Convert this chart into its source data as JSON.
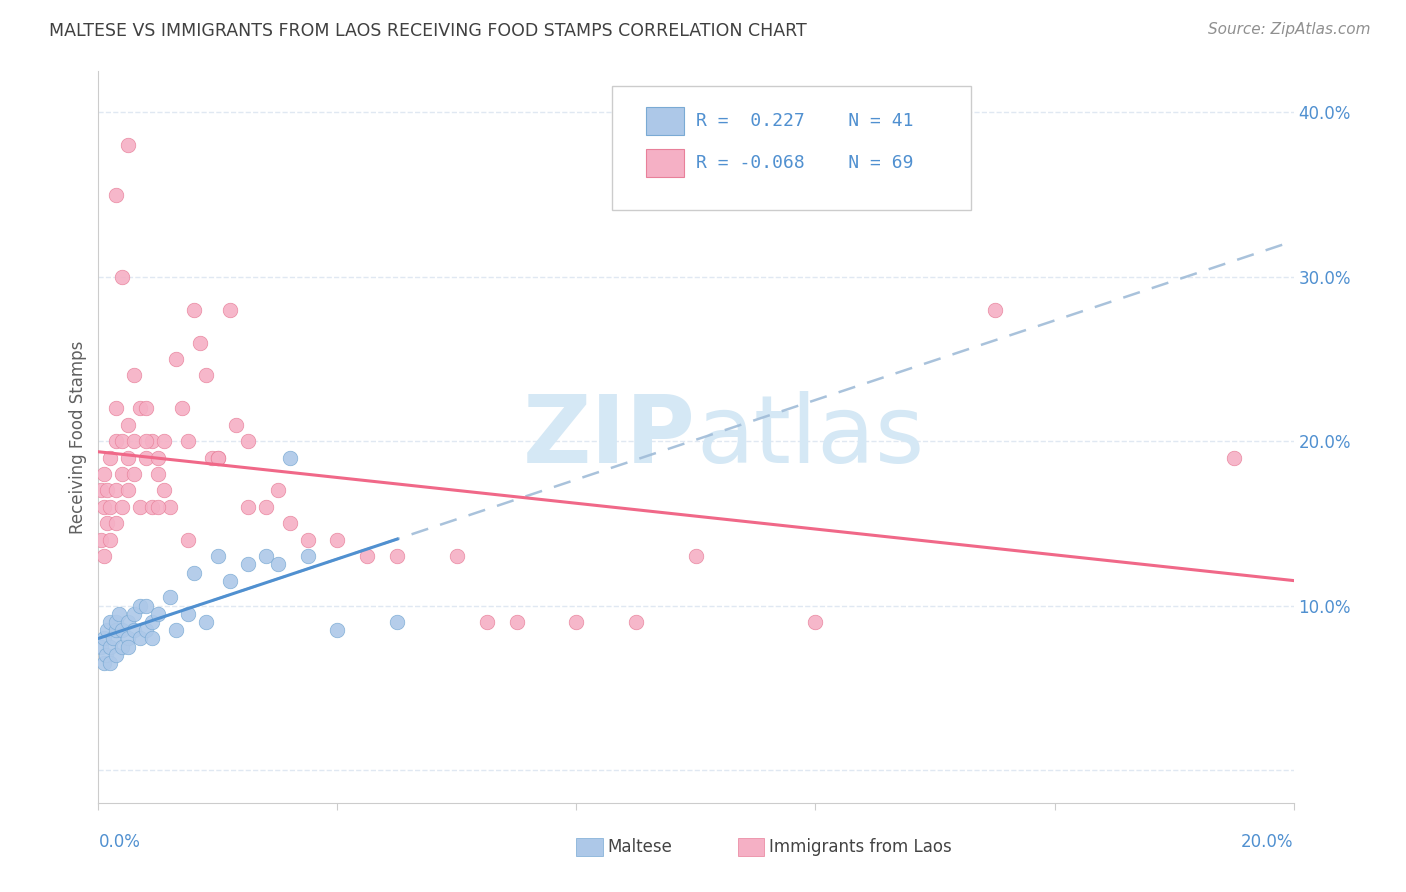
{
  "title": "MALTESE VS IMMIGRANTS FROM LAOS RECEIVING FOOD STAMPS CORRELATION CHART",
  "source": "Source: ZipAtlas.com",
  "ylabel": "Receiving Food Stamps",
  "blue_color": "#adc8e8",
  "pink_color": "#f5b0c5",
  "blue_edge_color": "#7aaad4",
  "pink_edge_color": "#e8809a",
  "blue_line_color": "#5090d0",
  "pink_line_color": "#f06888",
  "dash_line_color": "#a0bcd8",
  "watermark_color": "#d5e8f5",
  "title_color": "#404040",
  "source_color": "#909090",
  "ylabel_color": "#606060",
  "tick_color": "#5090d0",
  "grid_color": "#e0e8f2",
  "spine_color": "#cccccc",
  "xmin": 0.0,
  "xmax": 0.2,
  "ymin": -0.02,
  "ymax": 0.425,
  "maltese_x": [
    0.0005,
    0.001,
    0.001,
    0.0012,
    0.0015,
    0.002,
    0.002,
    0.002,
    0.0025,
    0.003,
    0.003,
    0.003,
    0.0035,
    0.004,
    0.004,
    0.005,
    0.005,
    0.005,
    0.006,
    0.006,
    0.007,
    0.007,
    0.008,
    0.008,
    0.009,
    0.009,
    0.01,
    0.012,
    0.013,
    0.015,
    0.016,
    0.018,
    0.02,
    0.022,
    0.025,
    0.028,
    0.03,
    0.032,
    0.035,
    0.04,
    0.05
  ],
  "maltese_y": [
    0.075,
    0.065,
    0.08,
    0.07,
    0.085,
    0.075,
    0.09,
    0.065,
    0.08,
    0.085,
    0.07,
    0.09,
    0.095,
    0.075,
    0.085,
    0.08,
    0.09,
    0.075,
    0.085,
    0.095,
    0.08,
    0.1,
    0.085,
    0.1,
    0.09,
    0.08,
    0.095,
    0.105,
    0.085,
    0.095,
    0.12,
    0.09,
    0.13,
    0.115,
    0.125,
    0.13,
    0.125,
    0.19,
    0.13,
    0.085,
    0.09
  ],
  "laos_x": [
    0.0005,
    0.0005,
    0.001,
    0.001,
    0.001,
    0.0015,
    0.0015,
    0.002,
    0.002,
    0.002,
    0.003,
    0.003,
    0.003,
    0.003,
    0.004,
    0.004,
    0.004,
    0.005,
    0.005,
    0.005,
    0.006,
    0.006,
    0.007,
    0.007,
    0.008,
    0.008,
    0.009,
    0.009,
    0.01,
    0.01,
    0.011,
    0.011,
    0.012,
    0.013,
    0.014,
    0.015,
    0.016,
    0.017,
    0.018,
    0.019,
    0.02,
    0.022,
    0.023,
    0.025,
    0.028,
    0.03,
    0.032,
    0.035,
    0.04,
    0.045,
    0.05,
    0.06,
    0.065,
    0.07,
    0.08,
    0.09,
    0.1,
    0.12,
    0.15,
    0.19,
    0.003,
    0.004,
    0.005,
    0.006,
    0.008,
    0.01,
    0.015,
    0.02,
    0.025
  ],
  "laos_y": [
    0.14,
    0.17,
    0.13,
    0.16,
    0.18,
    0.15,
    0.17,
    0.14,
    0.16,
    0.19,
    0.2,
    0.17,
    0.22,
    0.15,
    0.18,
    0.2,
    0.16,
    0.19,
    0.21,
    0.17,
    0.2,
    0.18,
    0.22,
    0.16,
    0.19,
    0.22,
    0.2,
    0.16,
    0.19,
    0.18,
    0.17,
    0.2,
    0.16,
    0.25,
    0.22,
    0.2,
    0.28,
    0.26,
    0.24,
    0.19,
    0.19,
    0.28,
    0.21,
    0.2,
    0.16,
    0.17,
    0.15,
    0.14,
    0.14,
    0.13,
    0.13,
    0.13,
    0.09,
    0.09,
    0.09,
    0.09,
    0.13,
    0.09,
    0.28,
    0.19,
    0.35,
    0.3,
    0.38,
    0.24,
    0.2,
    0.16,
    0.14,
    0.19,
    0.16
  ]
}
